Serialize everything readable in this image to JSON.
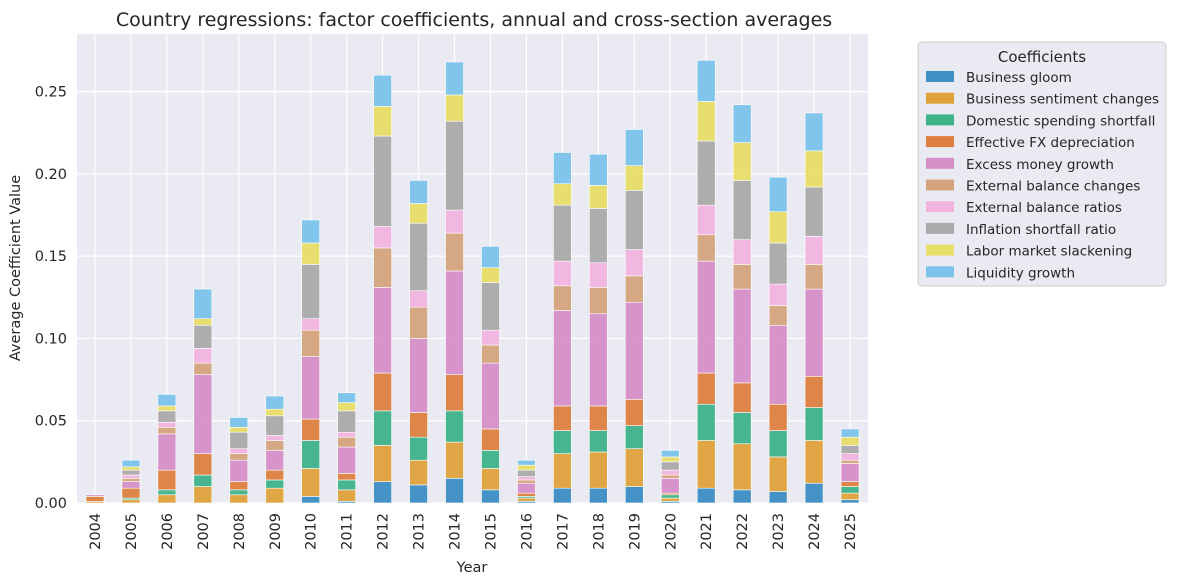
{
  "chart_data": {
    "type": "bar",
    "stacked": true,
    "title": "Country regressions: factor coefficients, annual and cross-section averages",
    "xlabel": "Year",
    "ylabel": "Average Coefficient Value",
    "ylim": [
      0,
      0.285
    ],
    "yticks": [
      "0.00",
      "0.05",
      "0.10",
      "0.15",
      "0.20",
      "0.25"
    ],
    "ytick_values": [
      0,
      0.05,
      0.1,
      0.15,
      0.2,
      0.25
    ],
    "grid": true,
    "legend_title": "Coefficients",
    "legend_position": "outside-right-top",
    "categories": [
      "2004",
      "2005",
      "2006",
      "2007",
      "2008",
      "2009",
      "2010",
      "2011",
      "2012",
      "2013",
      "2014",
      "2015",
      "2016",
      "2017",
      "2018",
      "2019",
      "2020",
      "2021",
      "2022",
      "2023",
      "2024",
      "2025"
    ],
    "series": [
      {
        "name": "Business gloom",
        "color": "#3d8fc4",
        "values": [
          0,
          0,
          0,
          0,
          0,
          0,
          0.004,
          0.001,
          0.013,
          0.011,
          0.015,
          0.008,
          0.001,
          0.009,
          0.009,
          0.01,
          0.001,
          0.009,
          0.008,
          0.007,
          0.012,
          0.002
        ]
      },
      {
        "name": "Business sentiment changes",
        "color": "#e0a23b",
        "values": [
          0.001,
          0.002,
          0.005,
          0.01,
          0.005,
          0.009,
          0.017,
          0.007,
          0.022,
          0.015,
          0.022,
          0.013,
          0.002,
          0.021,
          0.022,
          0.023,
          0.002,
          0.029,
          0.028,
          0.021,
          0.026,
          0.004
        ]
      },
      {
        "name": "Domestic spending shortfall",
        "color": "#3fb38a",
        "values": [
          0,
          0.001,
          0.003,
          0.007,
          0.003,
          0.005,
          0.017,
          0.006,
          0.021,
          0.014,
          0.019,
          0.011,
          0.001,
          0.014,
          0.013,
          0.014,
          0.002,
          0.022,
          0.019,
          0.016,
          0.02,
          0.004
        ]
      },
      {
        "name": "Effective FX depreciation",
        "color": "#de8040",
        "values": [
          0.003,
          0.006,
          0.012,
          0.013,
          0.005,
          0.006,
          0.013,
          0.004,
          0.023,
          0.015,
          0.022,
          0.013,
          0.002,
          0.015,
          0.015,
          0.016,
          0.001,
          0.019,
          0.018,
          0.016,
          0.019,
          0.003
        ]
      },
      {
        "name": "Excess money growth",
        "color": "#d690c8",
        "values": [
          0.001,
          0.004,
          0.022,
          0.048,
          0.013,
          0.012,
          0.038,
          0.016,
          0.052,
          0.045,
          0.063,
          0.04,
          0.006,
          0.058,
          0.056,
          0.059,
          0.009,
          0.068,
          0.057,
          0.048,
          0.053,
          0.011
        ]
      },
      {
        "name": "External balance changes",
        "color": "#d4a47e",
        "values": [
          0,
          0.002,
          0.004,
          0.007,
          0.004,
          0.006,
          0.016,
          0.006,
          0.024,
          0.019,
          0.023,
          0.011,
          0.002,
          0.015,
          0.016,
          0.016,
          0.002,
          0.016,
          0.015,
          0.012,
          0.015,
          0.002
        ]
      },
      {
        "name": "External balance ratios",
        "color": "#f2b5e0",
        "values": [
          0,
          0.002,
          0.003,
          0.009,
          0.003,
          0.003,
          0.007,
          0.003,
          0.013,
          0.01,
          0.014,
          0.009,
          0.002,
          0.015,
          0.015,
          0.016,
          0.003,
          0.018,
          0.015,
          0.013,
          0.017,
          0.004
        ]
      },
      {
        "name": "Inflation shortfall ratio",
        "color": "#aaaaaa",
        "values": [
          0,
          0.003,
          0.007,
          0.014,
          0.01,
          0.012,
          0.033,
          0.013,
          0.055,
          0.041,
          0.054,
          0.029,
          0.004,
          0.034,
          0.033,
          0.036,
          0.005,
          0.039,
          0.036,
          0.025,
          0.03,
          0.005
        ]
      },
      {
        "name": "Labor market slackening",
        "color": "#e8de6a",
        "values": [
          0,
          0.002,
          0.003,
          0.004,
          0.003,
          0.004,
          0.013,
          0.005,
          0.018,
          0.012,
          0.016,
          0.009,
          0.003,
          0.013,
          0.014,
          0.015,
          0.003,
          0.024,
          0.023,
          0.019,
          0.022,
          0.005
        ]
      },
      {
        "name": "Liquidity growth",
        "color": "#7cc3ec",
        "values": [
          0,
          0.004,
          0.007,
          0.018,
          0.006,
          0.008,
          0.014,
          0.006,
          0.019,
          0.014,
          0.02,
          0.013,
          0.003,
          0.019,
          0.019,
          0.022,
          0.004,
          0.025,
          0.023,
          0.021,
          0.023,
          0.005
        ]
      }
    ]
  }
}
